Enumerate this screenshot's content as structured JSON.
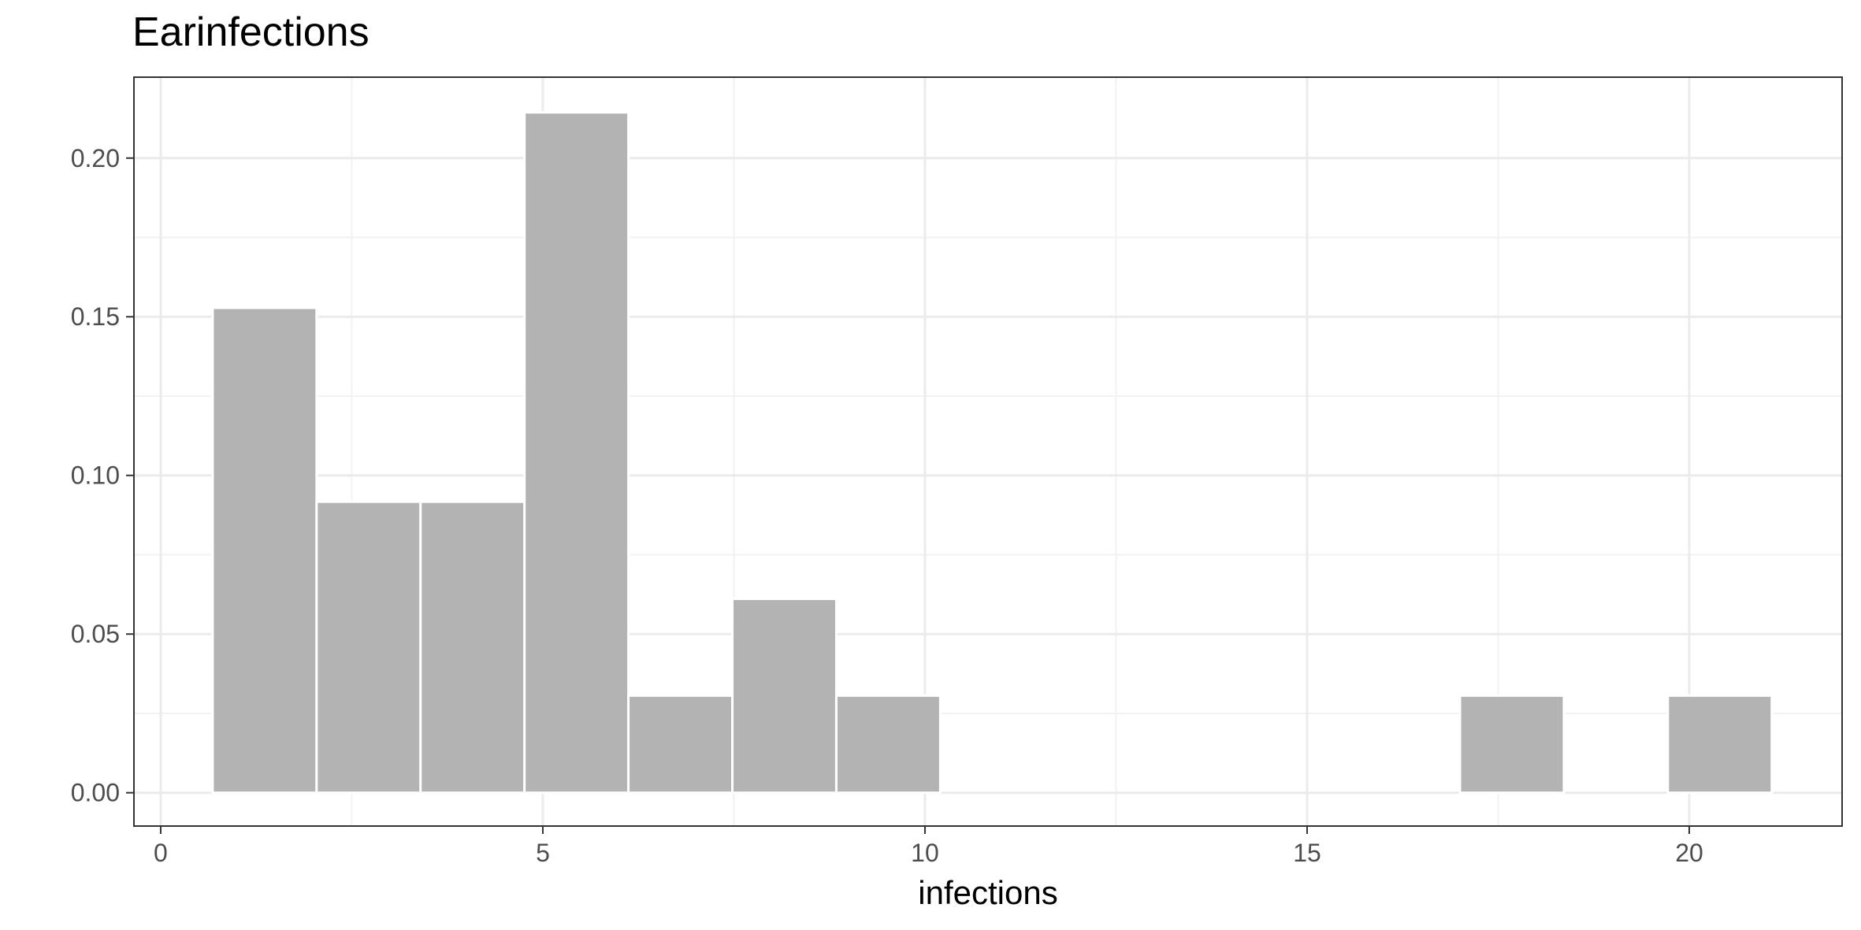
{
  "chart_data": {
    "type": "bar",
    "title": "Earinfections",
    "xlabel": "infections",
    "ylabel": "",
    "xlim": [
      -0.35,
      22.0
    ],
    "ylim": [
      -0.0105,
      0.2255
    ],
    "x_ticks": [
      0,
      5,
      10,
      15,
      20
    ],
    "x_tick_labels": [
      "0",
      "5",
      "10",
      "15",
      "20"
    ],
    "y_ticks": [
      0.0,
      0.05,
      0.1,
      0.15,
      0.2
    ],
    "y_tick_labels": [
      "0.00",
      "0.05",
      "0.10",
      "0.15",
      "0.20"
    ],
    "x_minor": [
      2.5,
      7.5,
      12.5,
      17.5
    ],
    "y_minor": [
      0.025,
      0.075,
      0.125,
      0.175
    ],
    "grid": true,
    "bins": [
      {
        "x0": 0.68,
        "x1": 2.04,
        "value": 0.1528
      },
      {
        "x0": 2.04,
        "x1": 3.4,
        "value": 0.0917
      },
      {
        "x0": 3.4,
        "x1": 4.76,
        "value": 0.0917
      },
      {
        "x0": 4.76,
        "x1": 6.12,
        "value": 0.2144
      },
      {
        "x0": 6.12,
        "x1": 7.48,
        "value": 0.0306
      },
      {
        "x0": 7.48,
        "x1": 8.84,
        "value": 0.0611
      },
      {
        "x0": 8.84,
        "x1": 10.2,
        "value": 0.0306
      },
      {
        "x0": 10.2,
        "x1": 11.56,
        "value": 0
      },
      {
        "x0": 11.56,
        "x1": 12.92,
        "value": 0
      },
      {
        "x0": 12.92,
        "x1": 14.28,
        "value": 0
      },
      {
        "x0": 14.28,
        "x1": 15.64,
        "value": 0
      },
      {
        "x0": 15.64,
        "x1": 17.0,
        "value": 0
      },
      {
        "x0": 17.0,
        "x1": 18.36,
        "value": 0.0306
      },
      {
        "x0": 18.36,
        "x1": 19.72,
        "value": 0
      },
      {
        "x0": 19.72,
        "x1": 21.08,
        "value": 0.0306
      }
    ],
    "bar_color": "#b3b3b3",
    "bar_outline": "#ffffff",
    "panel_border": "#333333",
    "grid_major_color": "#ebebeb",
    "grid_minor_color": "#f2f2f2"
  }
}
